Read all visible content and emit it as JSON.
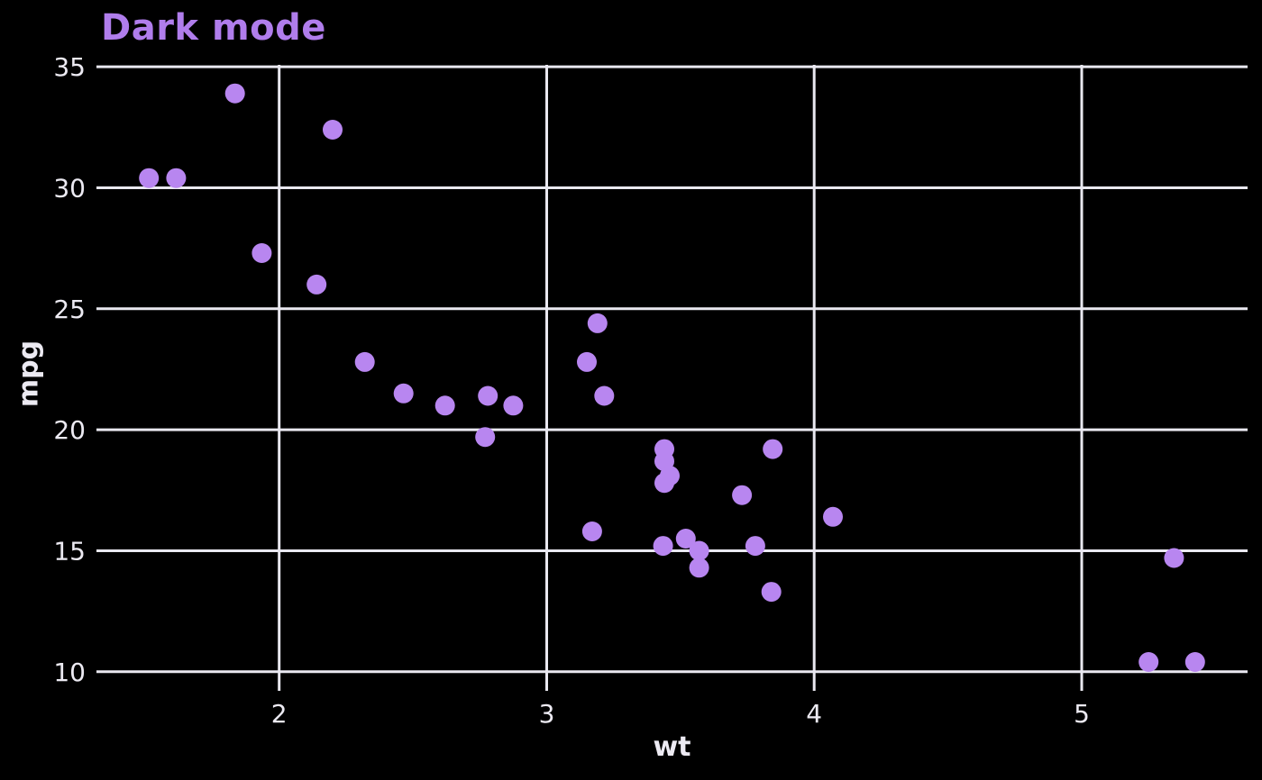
{
  "chart_data": {
    "type": "scatter",
    "title": "Dark mode",
    "xlabel": "wt",
    "ylabel": "mpg",
    "x": [
      2.62,
      2.875,
      2.32,
      3.215,
      3.44,
      3.46,
      3.57,
      3.19,
      3.15,
      3.44,
      3.44,
      4.07,
      3.73,
      3.78,
      5.25,
      5.424,
      5.345,
      2.2,
      1.615,
      1.835,
      2.465,
      3.52,
      3.435,
      3.84,
      3.845,
      1.935,
      2.14,
      1.513,
      3.17,
      2.77,
      3.57,
      2.78
    ],
    "y": [
      21.0,
      21.0,
      22.8,
      21.4,
      18.7,
      18.1,
      14.3,
      24.4,
      22.8,
      19.2,
      17.8,
      16.4,
      17.3,
      15.2,
      10.4,
      10.4,
      14.7,
      32.4,
      30.4,
      33.9,
      21.5,
      15.5,
      15.2,
      13.3,
      19.2,
      27.3,
      26.0,
      30.4,
      15.8,
      19.7,
      15.0,
      21.4
    ],
    "xticks": [
      2,
      3,
      4,
      5
    ],
    "yticks": [
      10,
      15,
      20,
      25,
      30,
      35
    ],
    "xlim": [
      1.317,
      5.62
    ],
    "ylim": [
      9.21,
      35.08
    ],
    "grid": true,
    "legend": "none",
    "marker_radius": 11,
    "colors": {
      "background": "#000000",
      "grid": "#e9e8f0",
      "tick_label": "#eceaf2",
      "axis_label": "#eceaf2",
      "title": "#b07dec",
      "marker": "#b886f0"
    }
  }
}
